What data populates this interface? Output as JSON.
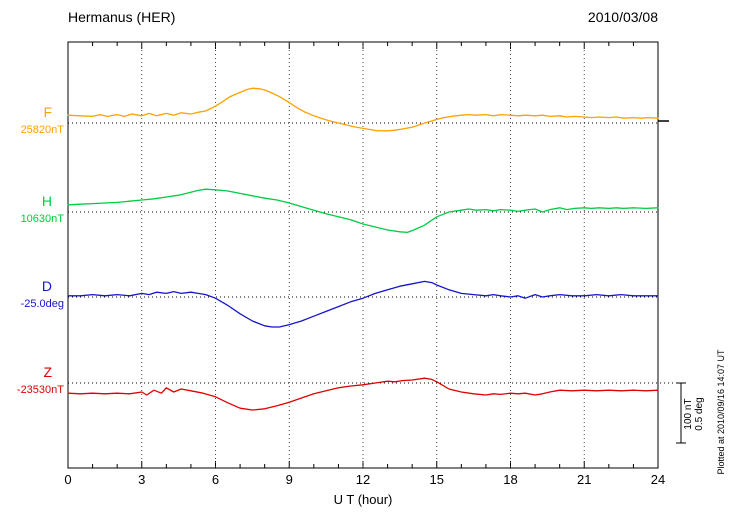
{
  "header": {
    "title": "Hermanus (HER)",
    "date": "2010/03/08"
  },
  "axis": {
    "xlabel": "U T (hour)",
    "x_ticks": [
      "0",
      "3",
      "6",
      "9",
      "12",
      "15",
      "18",
      "21",
      "24"
    ]
  },
  "scale_bar": {
    "labels": [
      "100 nT",
      "0.5 deg"
    ]
  },
  "footer_note": "Plotted at 2010/09/16 14:07 UT",
  "chart_data": {
    "type": "line",
    "title": "Hermanus (HER) magnetogram 2010/03/08",
    "xlabel": "U T (hour)",
    "x_range": [
      0,
      24
    ],
    "x_tick_step": 3,
    "grid": "dotted",
    "scale": {
      "nT_per_div": 100,
      "deg_per_div": 0.5
    },
    "series": [
      {
        "name": "F",
        "baseline_label": "25820nT",
        "baseline_value": 25820,
        "unit": "nT",
        "color": "#FFA200",
        "points": [
          [
            0,
            13
          ],
          [
            0.5,
            12
          ],
          [
            1,
            11
          ],
          [
            1.3,
            14
          ],
          [
            1.6,
            11
          ],
          [
            2,
            14
          ],
          [
            2.3,
            11
          ],
          [
            2.6,
            15
          ],
          [
            3,
            12
          ],
          [
            3.3,
            16
          ],
          [
            3.6,
            12
          ],
          [
            4,
            16
          ],
          [
            4.3,
            13
          ],
          [
            4.6,
            17
          ],
          [
            5,
            15
          ],
          [
            5.3,
            18
          ],
          [
            5.6,
            20
          ],
          [
            6,
            28
          ],
          [
            6.3,
            36
          ],
          [
            6.6,
            44
          ],
          [
            7,
            51
          ],
          [
            7.3,
            56
          ],
          [
            7.5,
            58
          ],
          [
            7.8,
            57
          ],
          [
            8,
            55
          ],
          [
            8.3,
            50
          ],
          [
            8.6,
            44
          ],
          [
            9,
            34
          ],
          [
            9.3,
            26
          ],
          [
            9.6,
            19
          ],
          [
            10,
            12
          ],
          [
            10.3,
            8
          ],
          [
            10.6,
            4
          ],
          [
            11,
            0
          ],
          [
            11.3,
            -3
          ],
          [
            11.6,
            -6
          ],
          [
            12,
            -9
          ],
          [
            12.3,
            -11
          ],
          [
            12.6,
            -13
          ],
          [
            13,
            -13
          ],
          [
            13.3,
            -12
          ],
          [
            13.6,
            -10
          ],
          [
            14,
            -7
          ],
          [
            14.3,
            -3
          ],
          [
            14.6,
            1
          ],
          [
            15,
            6
          ],
          [
            15.3,
            9
          ],
          [
            15.6,
            11
          ],
          [
            16,
            13
          ],
          [
            16.3,
            14
          ],
          [
            16.6,
            13
          ],
          [
            17,
            14
          ],
          [
            17.3,
            12
          ],
          [
            17.6,
            14
          ],
          [
            18,
            13
          ],
          [
            18.3,
            12
          ],
          [
            18.6,
            13
          ],
          [
            19,
            12
          ],
          [
            19.3,
            13
          ],
          [
            19.6,
            11
          ],
          [
            20,
            12
          ],
          [
            20.3,
            10
          ],
          [
            20.6,
            11
          ],
          [
            21,
            10
          ],
          [
            21.3,
            9
          ],
          [
            21.6,
            10
          ],
          [
            22,
            9
          ],
          [
            22.3,
            10
          ],
          [
            22.6,
            8
          ],
          [
            23,
            9
          ],
          [
            23.3,
            8
          ],
          [
            23.6,
            9
          ],
          [
            24,
            8
          ]
        ]
      },
      {
        "name": "H",
        "baseline_label": "10630nT",
        "baseline_value": 10630,
        "unit": "nT",
        "color": "#00CC44",
        "points": [
          [
            0,
            12
          ],
          [
            0.5,
            13
          ],
          [
            1,
            14
          ],
          [
            1.5,
            15
          ],
          [
            2,
            16
          ],
          [
            2.5,
            18
          ],
          [
            3,
            20
          ],
          [
            3.5,
            22
          ],
          [
            4,
            25
          ],
          [
            4.5,
            28
          ],
          [
            5,
            33
          ],
          [
            5.3,
            36
          ],
          [
            5.6,
            38
          ],
          [
            6,
            37
          ],
          [
            6.5,
            35
          ],
          [
            7,
            31
          ],
          [
            7.5,
            27
          ],
          [
            8,
            23
          ],
          [
            8.5,
            20
          ],
          [
            9,
            15
          ],
          [
            9.5,
            9
          ],
          [
            10,
            3
          ],
          [
            10.5,
            -3
          ],
          [
            11,
            -8
          ],
          [
            11.5,
            -13
          ],
          [
            12,
            -20
          ],
          [
            12.5,
            -25
          ],
          [
            13,
            -30
          ],
          [
            13.5,
            -33
          ],
          [
            13.8,
            -34
          ],
          [
            14,
            -31
          ],
          [
            14.5,
            -22
          ],
          [
            15,
            -8
          ],
          [
            15.5,
            0
          ],
          [
            16,
            3
          ],
          [
            16.3,
            5
          ],
          [
            16.6,
            3
          ],
          [
            17,
            4
          ],
          [
            17.3,
            2
          ],
          [
            17.6,
            4
          ],
          [
            18,
            3
          ],
          [
            18.3,
            1
          ],
          [
            18.6,
            3
          ],
          [
            19,
            5
          ],
          [
            19.3,
            0
          ],
          [
            19.6,
            4
          ],
          [
            20,
            7
          ],
          [
            20.3,
            4
          ],
          [
            20.6,
            6
          ],
          [
            21,
            7
          ],
          [
            21.3,
            6
          ],
          [
            21.6,
            7
          ],
          [
            22,
            6
          ],
          [
            22.3,
            7
          ],
          [
            22.6,
            6
          ],
          [
            23,
            7
          ],
          [
            23.5,
            6
          ],
          [
            24,
            7
          ]
        ]
      },
      {
        "name": "D",
        "baseline_label": "-25.0deg",
        "baseline_value": -25.0,
        "unit": "deg",
        "color": "#1515CC",
        "points": [
          [
            0,
            0.01
          ],
          [
            0.5,
            0.01
          ],
          [
            1,
            0.02
          ],
          [
            1.5,
            0.01
          ],
          [
            2,
            0.02
          ],
          [
            2.5,
            0.01
          ],
          [
            3,
            0.03
          ],
          [
            3.3,
            0.02
          ],
          [
            3.6,
            0.04
          ],
          [
            4,
            0.03
          ],
          [
            4.3,
            0.045
          ],
          [
            4.6,
            0.03
          ],
          [
            5,
            0.04
          ],
          [
            5.3,
            0.03
          ],
          [
            5.6,
            0.02
          ],
          [
            6,
            -0.01
          ],
          [
            6.5,
            -0.07
          ],
          [
            7,
            -0.14
          ],
          [
            7.5,
            -0.2
          ],
          [
            8,
            -0.24
          ],
          [
            8.3,
            -0.25
          ],
          [
            8.6,
            -0.25
          ],
          [
            9,
            -0.23
          ],
          [
            9.5,
            -0.2
          ],
          [
            10,
            -0.16
          ],
          [
            10.5,
            -0.12
          ],
          [
            11,
            -0.08
          ],
          [
            11.5,
            -0.04
          ],
          [
            12,
            -0.01
          ],
          [
            12.5,
            0.03
          ],
          [
            13,
            0.06
          ],
          [
            13.5,
            0.09
          ],
          [
            14,
            0.11
          ],
          [
            14.5,
            0.13
          ],
          [
            14.8,
            0.12
          ],
          [
            15,
            0.1
          ],
          [
            15.5,
            0.06
          ],
          [
            16,
            0.03
          ],
          [
            16.5,
            0.02
          ],
          [
            17,
            0.01
          ],
          [
            17.3,
            0.02
          ],
          [
            17.6,
            0.01
          ],
          [
            18,
            0
          ],
          [
            18.3,
            0.01
          ],
          [
            18.6,
            -0.01
          ],
          [
            19,
            0.02
          ],
          [
            19.3,
            0
          ],
          [
            19.6,
            0.01
          ],
          [
            20,
            0.02
          ],
          [
            20.5,
            0.01
          ],
          [
            21,
            0.01
          ],
          [
            21.5,
            0.02
          ],
          [
            22,
            0.01
          ],
          [
            22.5,
            0.02
          ],
          [
            23,
            0.01
          ],
          [
            23.5,
            0.01
          ],
          [
            24,
            0.01
          ]
        ]
      },
      {
        "name": "Z",
        "baseline_label": "-23530nT",
        "baseline_value": -23530,
        "unit": "nT",
        "color": "#E00000",
        "points": [
          [
            0,
            -17
          ],
          [
            0.5,
            -18
          ],
          [
            1,
            -17
          ],
          [
            1.5,
            -18
          ],
          [
            2,
            -17
          ],
          [
            2.5,
            -18
          ],
          [
            3,
            -15
          ],
          [
            3.2,
            -20
          ],
          [
            3.5,
            -12
          ],
          [
            3.8,
            -17
          ],
          [
            4,
            -8
          ],
          [
            4.3,
            -15
          ],
          [
            4.6,
            -10
          ],
          [
            5,
            -13
          ],
          [
            5.5,
            -17
          ],
          [
            6,
            -23
          ],
          [
            6.5,
            -33
          ],
          [
            7,
            -42
          ],
          [
            7.5,
            -45
          ],
          [
            8,
            -43
          ],
          [
            8.5,
            -38
          ],
          [
            9,
            -32
          ],
          [
            9.5,
            -25
          ],
          [
            10,
            -18
          ],
          [
            10.5,
            -13
          ],
          [
            11,
            -8
          ],
          [
            11.5,
            -5
          ],
          [
            12,
            -3
          ],
          [
            12.5,
            0
          ],
          [
            13,
            3
          ],
          [
            13.3,
            2
          ],
          [
            13.6,
            4
          ],
          [
            14,
            5
          ],
          [
            14.5,
            8
          ],
          [
            14.8,
            6
          ],
          [
            15,
            2
          ],
          [
            15.5,
            -10
          ],
          [
            16,
            -15
          ],
          [
            16.5,
            -18
          ],
          [
            17,
            -20
          ],
          [
            17.3,
            -18
          ],
          [
            17.6,
            -19
          ],
          [
            18,
            -17
          ],
          [
            18.3,
            -18
          ],
          [
            18.6,
            -17
          ],
          [
            19,
            -20
          ],
          [
            19.3,
            -18
          ],
          [
            19.6,
            -15
          ],
          [
            20,
            -12
          ],
          [
            20.5,
            -13
          ],
          [
            21,
            -12
          ],
          [
            21.5,
            -13
          ],
          [
            22,
            -12
          ],
          [
            22.5,
            -13
          ],
          [
            23,
            -12
          ],
          [
            23.5,
            -13
          ],
          [
            24,
            -12
          ]
        ]
      }
    ]
  }
}
